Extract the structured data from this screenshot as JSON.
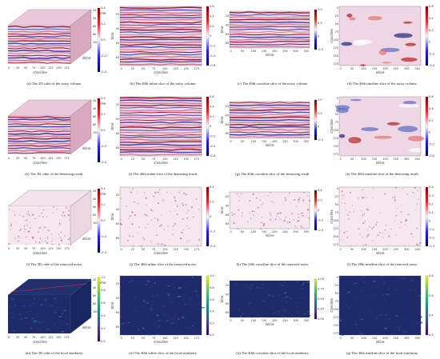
{
  "rows": [
    {
      "scheme": "seismic",
      "panels": [
        {
          "kind": "cube",
          "caption": "(a) The 3D cube of the noisy volume.",
          "cb": [
            "0.4",
            "0.2",
            "0.0",
            "-0.2",
            "-0.4"
          ]
        },
        {
          "kind": "inline",
          "caption": "(b) The 40th inline slice of the noisy volume.",
          "cb": [
            "0.6",
            "0.4",
            "0.2",
            "0",
            "-0.2",
            "-0.4",
            "-0.6"
          ]
        },
        {
          "kind": "crossline",
          "caption": "(c) The 40th crossline slice of the noisy volume.",
          "cb": [
            "1.0",
            "0.5",
            "0",
            "-0.5"
          ]
        },
        {
          "kind": "timeline",
          "caption": "(d) The 40th timeline slice of the noisy volume.",
          "cb": [
            "0.6",
            "0.4",
            "0.2",
            "0",
            "-0.2",
            "-0.4"
          ]
        }
      ]
    },
    {
      "scheme": "seismic",
      "panels": [
        {
          "kind": "cube",
          "caption": "(e) The 3D cube of the denoising result.",
          "cb": [
            "0.4",
            "0.2",
            "0.0",
            "-0.2",
            "-0.4"
          ]
        },
        {
          "kind": "inline",
          "caption": "(f) The 40th inline slice of the denoising result.",
          "cb": [
            "0.6",
            "0.4",
            "0.2",
            "0",
            "-0.2",
            "-0.4",
            "-0.6"
          ]
        },
        {
          "kind": "crossline",
          "caption": "(g) The 40th crossline slice of the denoising result.",
          "cb": [
            "1.0",
            "0.5",
            "0",
            "-0.5"
          ]
        },
        {
          "kind": "timeline",
          "caption": "(h) The 40th timeline slice of the denoising result.",
          "cb": [
            "0.6",
            "0.4",
            "0.2",
            "0",
            "-0.2",
            "-0.4"
          ]
        }
      ]
    },
    {
      "scheme": "noise",
      "panels": [
        {
          "kind": "cube",
          "caption": "(i) The 3D cube of the removed noise.",
          "cb": [
            "0.4",
            "0.2",
            "0.0",
            "-0.2",
            "-0.4"
          ]
        },
        {
          "kind": "inline",
          "caption": "(j) The 40th inline slice of the removed noise.",
          "cb": [
            "0.4",
            "0.2",
            "0",
            "-0.2",
            "-0.4"
          ]
        },
        {
          "kind": "crossline",
          "caption": "(k) The 40th crossline slice of the removed noise.",
          "cb": [
            "0.4",
            "0.2",
            "0",
            "-0.2",
            "-0.4"
          ]
        },
        {
          "kind": "timeline",
          "caption": "(l) The 40th timeline slice of the removed noise.",
          "cb": [
            "0.4",
            "0.3",
            "0.2",
            "0.1",
            "0",
            "-0.1",
            "-0.2",
            "-0.3"
          ]
        }
      ]
    },
    {
      "scheme": "viridis",
      "panels": [
        {
          "kind": "cube",
          "caption": "(m) The 3D cube of the local similarity.",
          "cb": [
            "1.0",
            "0.8",
            "0.6",
            "0.4",
            "0.2",
            "0.0"
          ]
        },
        {
          "kind": "inline",
          "caption": "(n) The 40th inline slice of the local similarity.",
          "cb": [
            "1.0",
            "0.8",
            "0.6",
            "0.4",
            "0.2",
            "0.0"
          ]
        },
        {
          "kind": "crossline",
          "caption": "(o) The 40th crossline slice of the local similarity.",
          "cb": [
            "1.00",
            "0.75",
            "0.50",
            "0.25",
            "0.00"
          ]
        },
        {
          "kind": "timeline",
          "caption": "(p) The 40th timeline slice of the local similarity.",
          "cb": [
            "0.8",
            "0.6",
            "0.4",
            "0.2"
          ]
        }
      ]
    }
  ],
  "axes": {
    "time_label": "time",
    "inline_label": "inline",
    "crossline_label": "crossline",
    "time_ticks": [
      "20",
      "40",
      "60",
      "80"
    ],
    "inline_ticks": [
      "0",
      "50",
      "100",
      "150",
      "200",
      "250",
      "300",
      "350"
    ],
    "crossline_ticks": [
      "0",
      "25",
      "50",
      "75",
      "100",
      "125",
      "150",
      "175"
    ],
    "timeline_y_ticks": [
      "0",
      "25",
      "50",
      "75",
      "100",
      "125",
      "150",
      "175"
    ],
    "cube_time_ticks": [
      "20",
      "40",
      "60",
      "80",
      "100"
    ],
    "cube_inline_ticks": [
      "0",
      "50",
      "100",
      "150",
      "200",
      "250",
      "300",
      "350"
    ],
    "cube_crossline_ticks": [
      "0",
      "25",
      "50",
      "75",
      "100",
      "125",
      "150",
      "175"
    ]
  }
}
